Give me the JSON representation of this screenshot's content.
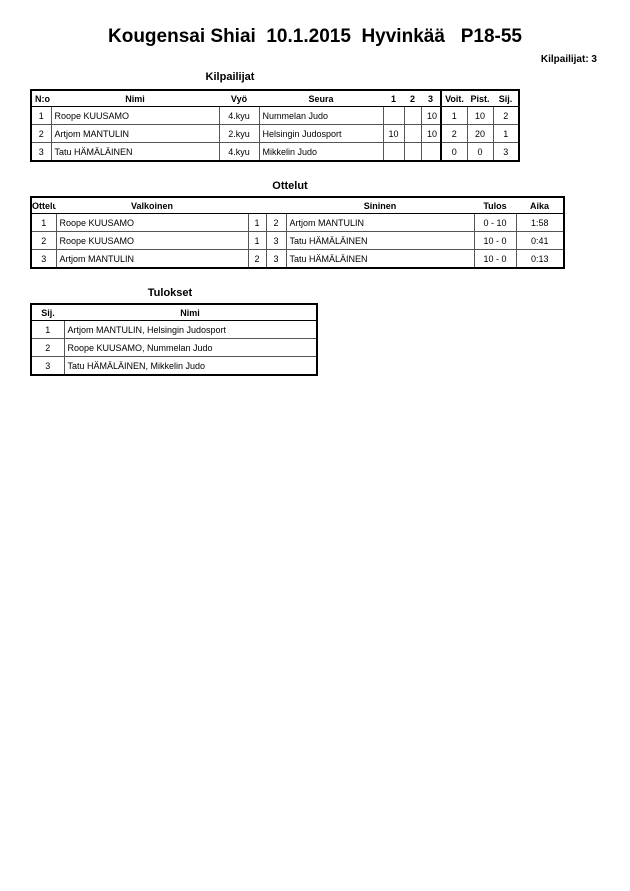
{
  "title": "Kougensai Shiai  10.1.2015  Hyvinkää   P18-55",
  "competitor_count": "Kilpailijat: 3",
  "competitors": {
    "heading": "Kilpailijat",
    "headers": {
      "no": "N:o",
      "name": "Nimi",
      "belt": "Vyö",
      "club": "Seura",
      "m1": "1",
      "m2": "2",
      "m3": "3",
      "wins": "Voit.",
      "points": "Pist.",
      "place": "Sij."
    },
    "rows": [
      {
        "no": "1",
        "name": "Roope KUUSAMO",
        "belt": "4.kyu",
        "club": "Nummelan Judo",
        "m1": "",
        "m2": "",
        "m3": "10",
        "wins": "1",
        "points": "10",
        "place": "2"
      },
      {
        "no": "2",
        "name": "Artjom MANTULIN",
        "belt": "2.kyu",
        "club": "Helsingin Judosport",
        "m1": "10",
        "m2": "",
        "m3": "10",
        "wins": "2",
        "points": "20",
        "place": "1"
      },
      {
        "no": "3",
        "name": "Tatu HÄMÄLÄINEN",
        "belt": "4.kyu",
        "club": "Mikkelin Judo",
        "m1": "",
        "m2": "",
        "m3": "",
        "wins": "0",
        "points": "0",
        "place": "3"
      }
    ]
  },
  "matches": {
    "heading": "Ottelut",
    "headers": {
      "no": "Ottelu",
      "white": "Valkoinen",
      "blue": "Sininen",
      "result": "Tulos",
      "time": "Aika"
    },
    "rows": [
      {
        "no": "1",
        "white": "Roope KUUSAMO",
        "wn": "1",
        "bn": "2",
        "blue": "Artjom MANTULIN",
        "result": "0 - 10",
        "time": "1:58"
      },
      {
        "no": "2",
        "white": "Roope KUUSAMO",
        "wn": "1",
        "bn": "3",
        "blue": "Tatu HÄMÄLÄINEN",
        "result": "10 - 0",
        "time": "0:41"
      },
      {
        "no": "3",
        "white": "Artjom MANTULIN",
        "wn": "2",
        "bn": "3",
        "blue": "Tatu HÄMÄLÄINEN",
        "result": "10 - 0",
        "time": "0:13"
      }
    ]
  },
  "results": {
    "heading": "Tulokset",
    "headers": {
      "place": "Sij.",
      "name": "Nimi"
    },
    "rows": [
      {
        "place": "1",
        "name": "Artjom MANTULIN, Helsingin Judosport"
      },
      {
        "place": "2",
        "name": "Roope KUUSAMO, Nummelan Judo"
      },
      {
        "place": "3",
        "name": "Tatu HÄMÄLÄINEN, Mikkelin Judo"
      }
    ]
  }
}
